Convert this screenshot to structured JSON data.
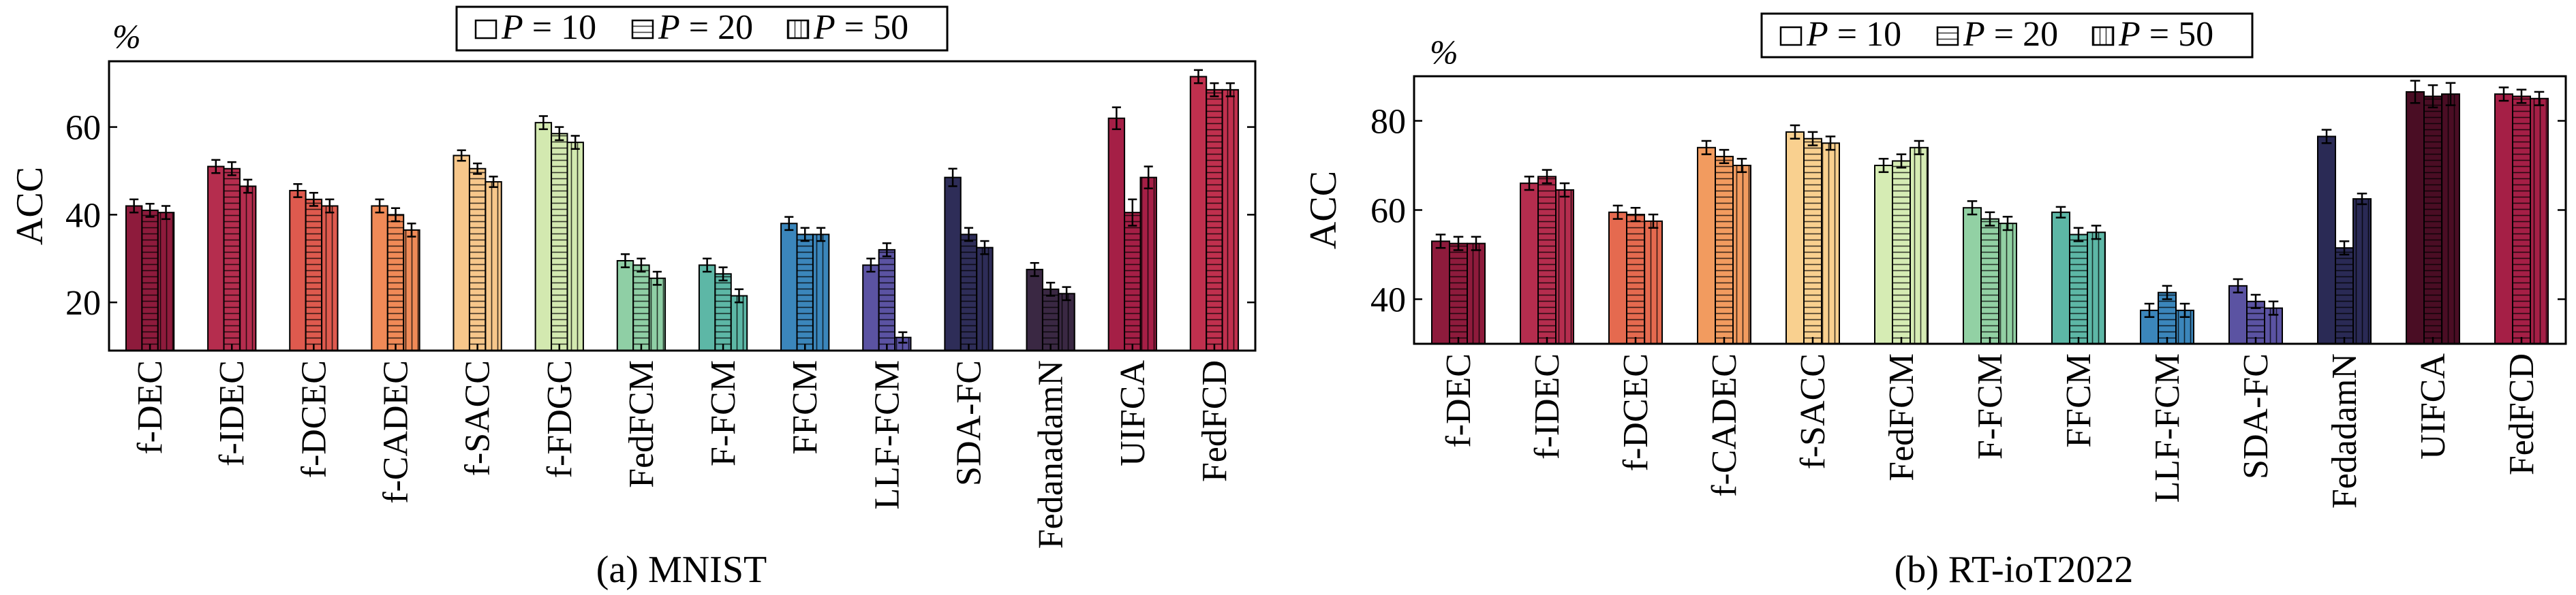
{
  "legend": {
    "entries": [
      {
        "symbol": "P",
        "text": " = 10"
      },
      {
        "symbol": "P",
        "text": " = 20"
      },
      {
        "symbol": "P",
        "text": " = 50"
      }
    ]
  },
  "chart_data": [
    {
      "type": "bar",
      "caption": "(a) MNIST",
      "ylabel": "ACC",
      "unit": "%",
      "ylim": [
        9,
        75
      ],
      "yticks": [
        20,
        40,
        60
      ],
      "legend_position": "top-center",
      "series_names": [
        "P = 10",
        "P = 20",
        "P = 50"
      ],
      "categories": [
        "f-DEC",
        "f-IDEC",
        "f-DCEC",
        "f-CADEC",
        "f-SACC",
        "f-FDGC",
        "FedFCM",
        "F-FCM",
        "FFCM",
        "LLF-FCM",
        "SDA-FC",
        "FedanadamN",
        "UIFCA",
        "FedFCD"
      ],
      "values": [
        [
          42,
          41,
          40.5
        ],
        [
          51,
          50.5,
          46.5
        ],
        [
          45.5,
          43.5,
          42
        ],
        [
          42,
          40,
          36.5
        ],
        [
          53.5,
          50.5,
          47.5
        ],
        [
          61,
          58.5,
          56.5
        ],
        [
          29.5,
          28.5,
          25.5
        ],
        [
          28.5,
          26.5,
          21.5
        ],
        [
          38,
          35.5,
          35.5
        ],
        [
          28.5,
          32,
          12
        ],
        [
          48.5,
          35.5,
          32.5
        ],
        [
          27.5,
          23,
          22
        ],
        [
          62,
          40.5,
          48.5
        ],
        [
          71.5,
          68.5,
          68.5
        ]
      ],
      "errors": [
        [
          1.5,
          1.5,
          1.5
        ],
        [
          1.5,
          1.5,
          1.5
        ],
        [
          1.5,
          1.5,
          1.5
        ],
        [
          1.5,
          1.5,
          1.5
        ],
        [
          1.2,
          1.2,
          1.2
        ],
        [
          1.5,
          1.5,
          1.5
        ],
        [
          1.5,
          1.5,
          1.5
        ],
        [
          1.5,
          1.5,
          1.5
        ],
        [
          1.5,
          1.5,
          1.5
        ],
        [
          1.5,
          1.5,
          1.2
        ],
        [
          2,
          1.5,
          1.5
        ],
        [
          1.5,
          1.5,
          1.5
        ],
        [
          2.5,
          3,
          2.5
        ],
        [
          1.5,
          1.5,
          1.5
        ]
      ],
      "colors": [
        "#8e1b3c",
        "#b52d4e",
        "#de5a4e",
        "#f08a57",
        "#f7c78b",
        "#d3e9b0",
        "#8fcfa5",
        "#5db7a6",
        "#3b86bb",
        "#5b53a2",
        "#2e2d58",
        "#3a2843",
        "#a51f46",
        "#c0304e"
      ]
    },
    {
      "type": "bar",
      "caption": "(b) RT-ioT2022",
      "ylabel": "ACC",
      "unit": "%",
      "ylim": [
        30,
        90
      ],
      "yticks": [
        40,
        60,
        80
      ],
      "legend_position": "top-center",
      "series_names": [
        "P = 10",
        "P = 20",
        "P = 50"
      ],
      "categories": [
        "f-DEC",
        "f-IDEC",
        "f-DCEC",
        "f-CADEC",
        "f-SACC",
        "FedFCM",
        "F-FCM",
        "FFCM",
        "LLF-FCM",
        "SDA-FC",
        "FedadamN",
        "UIFCA",
        "FedFCD"
      ],
      "values": [
        [
          53,
          52.5,
          52.5
        ],
        [
          66,
          67.5,
          64.5
        ],
        [
          59.5,
          59,
          57.5
        ],
        [
          74,
          72,
          70
        ],
        [
          77.5,
          76,
          75
        ],
        [
          70,
          71,
          74
        ],
        [
          60.5,
          58,
          57
        ],
        [
          59.5,
          54.5,
          55
        ],
        [
          37.5,
          41.5,
          37.5
        ],
        [
          43,
          39.5,
          38
        ],
        [
          76.5,
          51.5,
          62.5
        ],
        [
          86.5,
          85.5,
          86
        ],
        [
          86,
          85.5,
          85
        ]
      ],
      "errors": [
        [
          1.5,
          1.5,
          1.5
        ],
        [
          1.5,
          1.5,
          1.5
        ],
        [
          1.5,
          1.5,
          1.5
        ],
        [
          1.5,
          1.5,
          1.5
        ],
        [
          1.5,
          1.5,
          1.5
        ],
        [
          1.5,
          1.5,
          1.5
        ],
        [
          1.5,
          1.5,
          1.5
        ],
        [
          1.2,
          1.5,
          1.5
        ],
        [
          1.5,
          1.5,
          1.5
        ],
        [
          1.5,
          1.5,
          1.5
        ],
        [
          1.5,
          1.5,
          1.2
        ],
        [
          2.5,
          2.5,
          2.5
        ],
        [
          1.5,
          1.5,
          1.5
        ]
      ],
      "colors": [
        "#8e1b3c",
        "#b52d4e",
        "#e56a4f",
        "#f29b5f",
        "#f9d08f",
        "#d6ecb4",
        "#92d1a4",
        "#5db7a6",
        "#3b86bb",
        "#5b53a2",
        "#2a2a55",
        "#4a0d24",
        "#a51f46"
      ]
    }
  ]
}
